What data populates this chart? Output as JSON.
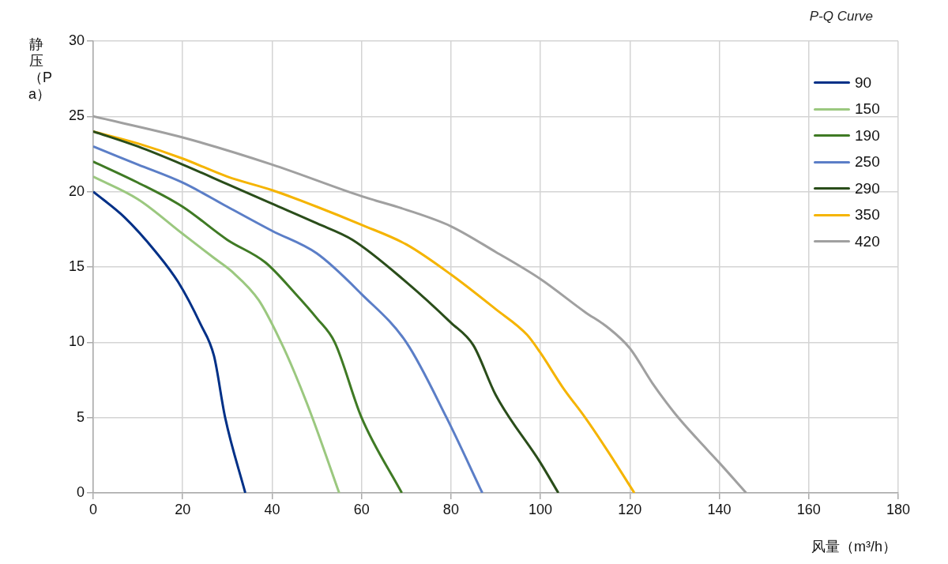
{
  "chart_data": {
    "type": "line",
    "title": "P-Q Curve",
    "xlabel": "风量（m³/h）",
    "ylabel": "静压（Pa）",
    "xlim": [
      0,
      180
    ],
    "xticks": [
      0,
      20,
      40,
      60,
      80,
      100,
      120,
      140,
      160,
      180
    ],
    "ylim": [
      0,
      30
    ],
    "yticks": [
      0,
      5,
      10,
      15,
      20,
      25,
      30
    ],
    "grid": true,
    "legend": "top right",
    "marker": "none",
    "line_style": "solid",
    "series": [
      {
        "name": "90",
        "color": "#003087",
        "x": [
          0,
          7,
          14,
          19,
          24,
          27,
          29.5,
          34
        ],
        "values": [
          20,
          18.3,
          16,
          14,
          11.2,
          9.1,
          5,
          0
        ]
      },
      {
        "name": "150",
        "color": "#9bc87f",
        "x": [
          0,
          10,
          20,
          27,
          31,
          37,
          42,
          45,
          49,
          55
        ],
        "values": [
          21,
          19.5,
          17.2,
          15.6,
          14.7,
          12.8,
          10,
          8,
          5,
          0
        ]
      },
      {
        "name": "190",
        "color": "#3f7a24",
        "x": [
          0,
          10,
          20,
          30,
          38.5,
          45,
          50,
          54,
          60,
          69
        ],
        "values": [
          22,
          20.6,
          19,
          16.8,
          15.3,
          13.3,
          11.6,
          10,
          5,
          0
        ]
      },
      {
        "name": "250",
        "color": "#5b7ec7",
        "x": [
          0,
          10,
          20,
          30,
          40,
          50,
          60,
          70,
          79,
          87
        ],
        "values": [
          23,
          21.8,
          20.6,
          19,
          17.4,
          15.9,
          13.2,
          10,
          5,
          0
        ]
      },
      {
        "name": "290",
        "color": "#2a4d1a",
        "x": [
          0,
          10,
          20,
          30,
          40,
          50,
          58,
          70,
          80,
          85,
          90,
          100,
          104
        ],
        "values": [
          24,
          23,
          21.8,
          20.5,
          19.2,
          17.9,
          16.8,
          14,
          11.3,
          9.8,
          6.5,
          2,
          0
        ]
      },
      {
        "name": "350",
        "color": "#f5b400",
        "x": [
          0,
          10,
          20,
          30,
          40,
          50,
          60,
          70,
          80,
          90,
          97,
          100,
          105,
          110,
          115,
          121
        ],
        "values": [
          24,
          23.2,
          22.2,
          21,
          20.1,
          19,
          17.8,
          16.5,
          14.5,
          12.2,
          10.5,
          9.3,
          7,
          5,
          2.8,
          0
        ]
      },
      {
        "name": "420",
        "color": "#a0a0a0",
        "x": [
          0,
          20,
          40,
          60,
          70,
          80,
          90,
          100,
          110,
          115,
          120,
          125,
          130,
          135,
          140,
          146
        ],
        "values": [
          25,
          23.6,
          21.8,
          19.7,
          18.8,
          17.7,
          16,
          14.2,
          12,
          11,
          9.6,
          7.3,
          5.3,
          3.6,
          2,
          0
        ]
      }
    ]
  }
}
